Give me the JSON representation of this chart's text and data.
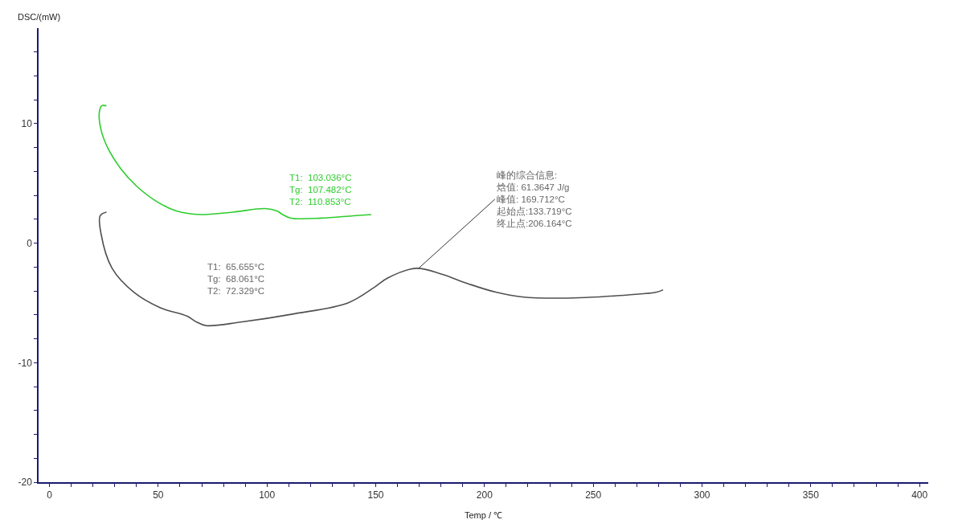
{
  "chart_data": {
    "type": "line",
    "xlabel": "Temp / ℃",
    "ylabel": "DSC/(mW)",
    "xlim": [
      -5,
      404
    ],
    "ylim": [
      -20,
      18
    ],
    "xticks": [
      0,
      {
        "value": 10,
        "label": null
      },
      {
        "value": 20,
        "label": null
      },
      {
        "value": 30,
        "label": null
      },
      {
        "value": 40,
        "label": null
      },
      50,
      {
        "value": 60,
        "label": null
      },
      {
        "value": 70,
        "label": null
      },
      {
        "value": 80,
        "label": null
      },
      {
        "value": 90,
        "label": null
      },
      100,
      {
        "value": 110,
        "label": null
      },
      {
        "value": 120,
        "label": null
      },
      {
        "value": 130,
        "label": null
      },
      {
        "value": 140,
        "label": null
      },
      150,
      {
        "value": 160,
        "label": null
      },
      {
        "value": 170,
        "label": null
      },
      {
        "value": 180,
        "label": null
      },
      {
        "value": 190,
        "label": null
      },
      200,
      {
        "value": 210,
        "label": null
      },
      {
        "value": 220,
        "label": null
      },
      {
        "value": 230,
        "label": null
      },
      {
        "value": 240,
        "label": null
      },
      250,
      {
        "value": 260,
        "label": null
      },
      {
        "value": 270,
        "label": null
      },
      {
        "value": 280,
        "label": null
      },
      {
        "value": 290,
        "label": null
      },
      300,
      {
        "value": 310,
        "label": null
      },
      {
        "value": 320,
        "label": null
      },
      {
        "value": 330,
        "label": null
      },
      {
        "value": 340,
        "label": null
      },
      350,
      {
        "value": 360,
        "label": null
      },
      {
        "value": 370,
        "label": null
      },
      {
        "value": 380,
        "label": null
      },
      {
        "value": 390,
        "label": null
      },
      400
    ],
    "yticks": [
      -20,
      {
        "value": -18,
        "label": null
      },
      {
        "value": -16,
        "label": null
      },
      {
        "value": -14,
        "label": null
      },
      {
        "value": -12,
        "label": null
      },
      -10,
      {
        "value": -8,
        "label": null
      },
      {
        "value": -6,
        "label": null
      },
      {
        "value": -4,
        "label": null
      },
      {
        "value": -2,
        "label": null
      },
      0,
      {
        "value": 2,
        "label": null
      },
      {
        "value": 4,
        "label": null
      },
      {
        "value": 6,
        "label": null
      },
      {
        "value": 8,
        "label": null
      },
      10,
      {
        "value": 12,
        "label": null
      },
      {
        "value": 14,
        "label": null
      },
      {
        "value": 16,
        "label": null
      }
    ],
    "marker": "none",
    "line_style": "solid",
    "series": [
      {
        "color": "#2ecc2e",
        "x": [
          26.2,
          24.0,
          22.9,
          23.7,
          27.0,
          32.5,
          39.9,
          49.2,
          58.4,
          69.5,
          84.3,
          99.1,
          104.6,
          107.2,
          110.9,
          125.0,
          139.7,
          147.9
        ],
        "values": [
          11.5,
          11.5,
          10.9,
          9.5,
          7.9,
          6.3,
          4.8,
          3.5,
          2.7,
          2.4,
          2.6,
          2.9,
          2.7,
          2.4,
          2.1,
          2.1,
          2.3,
          2.4
        ]
      },
      {
        "color": "#505050",
        "x": [
          26.2,
          23.3,
          23.7,
          28.8,
          38.8,
          51.0,
          63.2,
          67.7,
          72.1,
          88.0,
          112.8,
          137.2,
          149.3,
          155.6,
          168.6,
          180.4,
          192.6,
          205.2,
          217.4,
          235.9,
          260.6,
          279.1,
          282.1
        ],
        "values": [
          2.6,
          2.3,
          0.8,
          -2.1,
          -4.1,
          -5.4,
          -6.1,
          -6.6,
          -6.9,
          -6.6,
          -5.9,
          -5.0,
          -3.7,
          -2.9,
          -2.1,
          -2.6,
          -3.4,
          -4.1,
          -4.5,
          -4.6,
          -4.4,
          -4.1,
          -3.9
        ]
      }
    ],
    "annotations": [
      "T1:  103.036°C\nTg:  107.482°C\nT2:  110.853°C",
      "T1:  65.655°C\nTg:  68.061°C\nT2:  72.329°C",
      {
        "text": "峰的综合信息:\n焓值: 61.3647 J/g\n峰值: 169.712°C\n起始点:133.719°C\n终止点:206.164°C",
        "x": 169.712,
        "y": -2.1
      }
    ]
  }
}
